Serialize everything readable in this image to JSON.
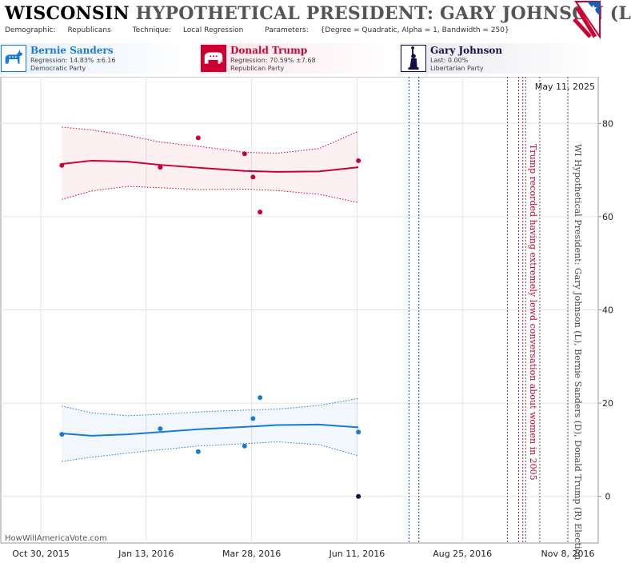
{
  "header": {
    "state": "WISCONSIN",
    "title_rest": "HYPOTHETICAL PRESIDENT: GARY JOHNSON (L) I",
    "demographic_label": "Demographic:",
    "demographic_value": "Republicans",
    "technique_label": "Technique:",
    "technique_value": "Local Regression",
    "parameters_label": "Parameters:",
    "parameters_value": "{Degree = Quadratic, Alpha = 1, Bandwidth = 250}"
  },
  "candidates": [
    {
      "name": "Bernie Sanders",
      "line1": "Regression: 14.83% ±6.16",
      "line2": "Democratic Party",
      "color": "#1a7ad8",
      "icon": "donkey-icon"
    },
    {
      "name": "Donald Trump",
      "line1": "Regression: 70.59% ±7.68",
      "line2": "Republican Party",
      "color": "#cc0033",
      "icon": "elephant-icon"
    },
    {
      "name": "Gary Johnson",
      "line1": "Last: 0.00%",
      "line2": "Libertarian Party",
      "color": "#111144",
      "icon": "statue-of-liberty-icon"
    }
  ],
  "site": "HowWillAmericaVote.com",
  "chart_data": {
    "type": "scatter",
    "date_label": "May 11, 2025",
    "x_ticks": [
      "Oct 30, 2015",
      "Jan 13, 2016",
      "Mar 28, 2016",
      "Jun 11, 2016",
      "Aug 25, 2016",
      "Nov 8, 2016"
    ],
    "y_ticks": [
      0,
      20,
      40,
      60,
      80
    ],
    "ylim": [
      -10,
      90
    ],
    "xlim": [
      "2015-10-30",
      "2016-11-08"
    ],
    "series": [
      {
        "name": "Donald Trump",
        "color": "#cc0033",
        "points": [
          {
            "x": "2015-11-14",
            "y": 71.0
          },
          {
            "x": "2016-01-23",
            "y": 70.6
          },
          {
            "x": "2016-02-19",
            "y": 76.9
          },
          {
            "x": "2016-03-23",
            "y": 73.5
          },
          {
            "x": "2016-03-29",
            "y": 68.5
          },
          {
            "x": "2016-04-03",
            "y": 61.0
          },
          {
            "x": "2016-06-12",
            "y": 72.0
          }
        ],
        "fit": [
          {
            "x": "2015-11-14",
            "y": 71.3,
            "lo": 63.7,
            "hi": 79.2
          },
          {
            "x": "2015-12-05",
            "y": 72.0,
            "lo": 65.5,
            "hi": 78.6
          },
          {
            "x": "2015-12-31",
            "y": 71.8,
            "lo": 66.5,
            "hi": 77.4
          },
          {
            "x": "2016-01-23",
            "y": 71.1,
            "lo": 66.2,
            "hi": 76.0
          },
          {
            "x": "2016-02-19",
            "y": 70.5,
            "lo": 65.8,
            "hi": 75.1
          },
          {
            "x": "2016-03-23",
            "y": 69.8,
            "lo": 65.9,
            "hi": 73.8
          },
          {
            "x": "2016-04-15",
            "y": 69.6,
            "lo": 65.6,
            "hi": 73.6
          },
          {
            "x": "2016-05-15",
            "y": 69.7,
            "lo": 64.8,
            "hi": 74.6
          },
          {
            "x": "2016-06-12",
            "y": 70.6,
            "lo": 63.0,
            "hi": 78.3
          }
        ]
      },
      {
        "name": "Bernie Sanders",
        "color": "#1a7ad8",
        "points": [
          {
            "x": "2015-11-14",
            "y": 13.3
          },
          {
            "x": "2016-01-23",
            "y": 14.5
          },
          {
            "x": "2016-02-19",
            "y": 9.6
          },
          {
            "x": "2016-03-23",
            "y": 10.8
          },
          {
            "x": "2016-03-29",
            "y": 16.7
          },
          {
            "x": "2016-04-03",
            "y": 21.2
          },
          {
            "x": "2016-06-12",
            "y": 13.8
          }
        ],
        "fit": [
          {
            "x": "2015-11-14",
            "y": 13.5,
            "lo": 7.5,
            "hi": 19.4
          },
          {
            "x": "2015-12-05",
            "y": 13.0,
            "lo": 8.4,
            "hi": 17.9
          },
          {
            "x": "2015-12-31",
            "y": 13.3,
            "lo": 9.3,
            "hi": 17.3
          },
          {
            "x": "2016-01-23",
            "y": 13.8,
            "lo": 10.0,
            "hi": 17.6
          },
          {
            "x": "2016-02-19",
            "y": 14.4,
            "lo": 10.8,
            "hi": 18.1
          },
          {
            "x": "2016-03-23",
            "y": 14.9,
            "lo": 11.3,
            "hi": 18.5
          },
          {
            "x": "2016-04-15",
            "y": 15.3,
            "lo": 11.7,
            "hi": 18.7
          },
          {
            "x": "2016-05-15",
            "y": 15.4,
            "lo": 11.1,
            "hi": 19.5
          },
          {
            "x": "2016-06-12",
            "y": 14.8,
            "lo": 8.7,
            "hi": 21.0
          }
        ]
      },
      {
        "name": "Gary Johnson",
        "color": "#111144",
        "points": [
          {
            "x": "2016-06-12",
            "y": 0.0
          }
        ]
      }
    ],
    "event_lines": [
      {
        "x": "2016-07-18",
        "color": "#1a3fa8",
        "style": "dotted"
      },
      {
        "x": "2016-07-25",
        "color": "#1a3fa8",
        "style": "dotted"
      },
      {
        "x": "2016-09-26",
        "color": "#555555",
        "style": "dotted"
      },
      {
        "x": "2016-10-04",
        "color": "#555555",
        "style": "dotted"
      },
      {
        "x": "2016-10-07",
        "color": "#cc0033",
        "style": "dotted"
      },
      {
        "x": "2016-10-09",
        "color": "#555555",
        "style": "dotted"
      },
      {
        "x": "2016-10-19",
        "color": "#555555",
        "style": "dotted"
      },
      {
        "x": "2016-11-08",
        "color": "#555555",
        "style": "dotted"
      }
    ],
    "annotations": [
      {
        "text": "Trump recorded having extremely lewd conversation about women in 2005",
        "x": "2016-10-07",
        "color": "#cc0033"
      },
      {
        "text": "WI Hypothetical President: Gary Johnson (L), Bernie Sanders (D), Donald Trump (R) Election",
        "x": "2016-11-08",
        "color": "#444444"
      }
    ]
  }
}
